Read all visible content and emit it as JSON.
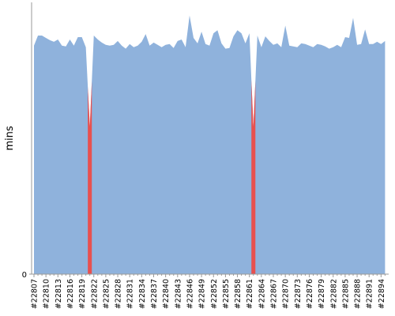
{
  "chart_data": {
    "type": "area",
    "y_label": "mins",
    "categories": [
      "#22807",
      null,
      null,
      "#22810",
      null,
      null,
      "#22813",
      null,
      null,
      "#22816",
      null,
      null,
      "#22819",
      null,
      null,
      "#22822",
      null,
      null,
      "#22825",
      null,
      null,
      "#22828",
      null,
      null,
      "#22831",
      null,
      null,
      "#22834",
      null,
      null,
      "#22837",
      null,
      null,
      "#22840",
      null,
      null,
      "#22843",
      null,
      null,
      "#22846",
      null,
      null,
      "#22849",
      null,
      null,
      "#22852",
      null,
      null,
      "#22855",
      null,
      null,
      "#22858",
      null,
      null,
      "#22861",
      null,
      null,
      "#22864",
      null,
      null,
      "#22867",
      null,
      null,
      "#22870",
      null,
      null,
      "#22873",
      null,
      null,
      "#22876",
      null,
      null,
      "#22879",
      null,
      null,
      "#22882",
      null,
      null,
      "#22885",
      null,
      null,
      "#22888",
      null,
      null,
      "#22891",
      null,
      null,
      "#22894",
      null
    ],
    "values": [
      29.6,
      30.9,
      30.9,
      30.6,
      30.3,
      30.1,
      30.4,
      29.6,
      29.5,
      30.4,
      29.6,
      30.7,
      30.7,
      29.4,
      19.1,
      30.9,
      30.4,
      30.0,
      29.7,
      29.6,
      29.7,
      30.2,
      29.6,
      29.2,
      29.8,
      29.4,
      29.6,
      30.1,
      31.1,
      29.6,
      30.0,
      29.7,
      29.4,
      29.7,
      29.8,
      29.3,
      30.2,
      30.4,
      29.4,
      33.5,
      30.6,
      29.9,
      31.4,
      29.8,
      29.6,
      31.2,
      31.6,
      29.9,
      29.2,
      29.3,
      30.8,
      31.6,
      31.2,
      29.9,
      31.2,
      19.1,
      30.9,
      29.4,
      30.8,
      30.2,
      29.7,
      29.9,
      29.4,
      32.2,
      29.6,
      29.5,
      29.4,
      29.9,
      29.8,
      29.6,
      29.4,
      29.8,
      29.7,
      29.5,
      29.2,
      29.4,
      29.7,
      29.4,
      30.7,
      30.6,
      33.2,
      29.7,
      29.8,
      31.7,
      29.8,
      29.8,
      30.1,
      29.8,
      30.2
    ],
    "color": "#8fb2dc",
    "failed_color": "#e8504f",
    "failed": [
      14,
      55
    ],
    "ylim": [
      0,
      35
    ],
    "yticks": [
      0
    ]
  }
}
